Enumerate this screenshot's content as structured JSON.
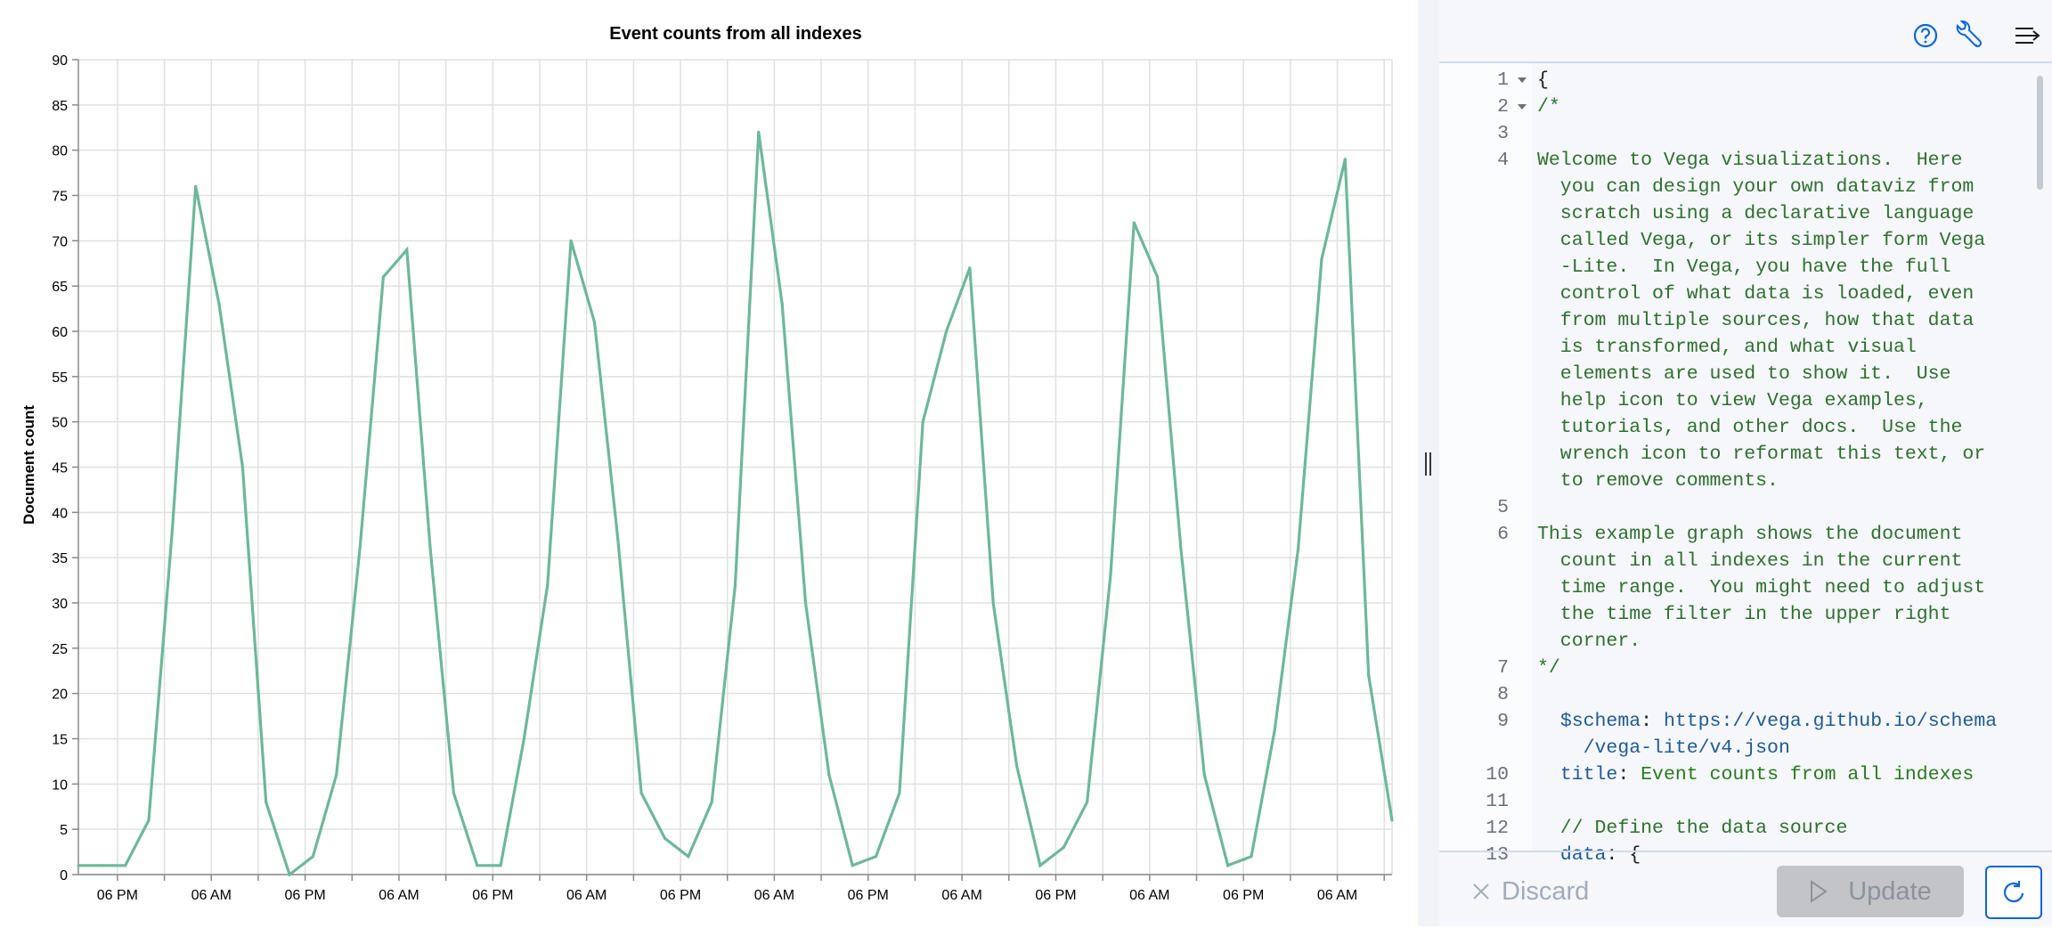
{
  "chart": {
    "title": "Event counts from all indexes",
    "y_axis_title": "Document count",
    "line_color": "#6db79b"
  },
  "chart_data": {
    "type": "line",
    "title": "Event counts from all indexes",
    "xlabel": "",
    "ylabel": "Document count",
    "ylim": [
      0,
      90
    ],
    "y_ticks": [
      "0",
      "5",
      "10",
      "15",
      "20",
      "25",
      "30",
      "35",
      "40",
      "45",
      "50",
      "55",
      "60",
      "65",
      "70",
      "75",
      "80",
      "85",
      "90"
    ],
    "x_tick_labels": [
      "06 PM",
      "06 AM",
      "06 PM",
      "06 AM",
      "06 PM",
      "06 AM",
      "06 PM",
      "06 AM",
      "06 PM",
      "06 AM",
      "06 PM",
      "06 AM",
      "06 PM",
      "06 AM"
    ],
    "grid": true,
    "x": [
      "1 PM",
      "4 PM",
      "7 PM",
      "10 PM",
      "1 AM",
      "4 AM",
      "7 AM",
      "10 AM",
      "1 PM",
      "4 PM",
      "7 PM",
      "10 PM",
      "1 AM",
      "4 AM",
      "7 AM",
      "10 AM",
      "1 PM",
      "4 PM",
      "7 PM",
      "10 PM",
      "1 AM",
      "4 AM",
      "7 AM",
      "10 AM",
      "1 PM",
      "4 PM",
      "7 PM",
      "10 PM",
      "1 AM",
      "4 AM",
      "7 AM",
      "10 AM",
      "1 PM",
      "4 PM",
      "7 PM",
      "10 PM",
      "1 AM",
      "4 AM",
      "7 AM",
      "10 AM",
      "1 PM",
      "4 PM",
      "7 PM",
      "10 PM",
      "1 AM",
      "4 AM",
      "7 AM",
      "10 AM",
      "1 PM",
      "4 PM",
      "7 PM",
      "10 PM",
      "1 AM",
      "4 AM",
      "7 AM",
      "10 AM",
      "1 PM"
    ],
    "values": [
      1,
      1,
      1,
      6,
      38,
      76,
      63,
      45,
      8,
      0,
      2,
      11,
      36,
      66,
      69,
      36,
      9,
      1,
      1,
      15,
      32,
      70,
      61,
      37,
      9,
      4,
      2,
      8,
      32,
      82,
      63,
      30,
      11,
      1,
      2,
      9,
      50,
      60,
      67,
      30,
      12,
      1,
      3,
      8,
      33,
      72,
      66,
      36,
      11,
      1,
      2,
      16,
      36,
      68,
      79,
      22,
      6
    ]
  },
  "toolbar": {
    "help_icon": "help-circle-icon",
    "wrench_icon": "wrench-icon",
    "menu_icon": "collapse-menu-icon",
    "accent": "#0b64dd"
  },
  "editor": {
    "lines": [
      {
        "num": "1",
        "fold": true,
        "rows": [
          [
            {
              "t": "{",
              "c": "plain"
            }
          ]
        ]
      },
      {
        "num": "2",
        "fold": true,
        "rows": [
          [
            {
              "t": "/*",
              "c": "comment"
            }
          ]
        ]
      },
      {
        "num": "3",
        "rows": [
          []
        ]
      },
      {
        "num": "4",
        "rows": [
          [
            {
              "t": "Welcome to Vega visualizations.  Here",
              "c": "comment"
            }
          ],
          [
            {
              "t": "  you can design your own dataviz from",
              "c": "comment"
            }
          ],
          [
            {
              "t": "  scratch using a declarative language",
              "c": "comment"
            }
          ],
          [
            {
              "t": "  called Vega, or its simpler form Vega",
              "c": "comment"
            }
          ],
          [
            {
              "t": "  -Lite.  In Vega, you have the full",
              "c": "comment"
            }
          ],
          [
            {
              "t": "  control of what data is loaded, even",
              "c": "comment"
            }
          ],
          [
            {
              "t": "  from multiple sources, how that data",
              "c": "comment"
            }
          ],
          [
            {
              "t": "  is transformed, and what visual",
              "c": "comment"
            }
          ],
          [
            {
              "t": "  elements are used to show it.  Use",
              "c": "comment"
            }
          ],
          [
            {
              "t": "  help icon to view Vega examples,",
              "c": "comment"
            }
          ],
          [
            {
              "t": "  tutorials, and other docs.  Use the",
              "c": "comment"
            }
          ],
          [
            {
              "t": "  wrench icon to reformat this text, or",
              "c": "comment"
            }
          ],
          [
            {
              "t": "  to remove comments.",
              "c": "comment"
            }
          ]
        ]
      },
      {
        "num": "5",
        "rows": [
          []
        ]
      },
      {
        "num": "6",
        "rows": [
          [
            {
              "t": "This example graph shows the document",
              "c": "comment"
            }
          ],
          [
            {
              "t": "  count in all indexes in the current",
              "c": "comment"
            }
          ],
          [
            {
              "t": "  time range.  You might need to adjust",
              "c": "comment"
            }
          ],
          [
            {
              "t": "  the time filter in the upper right",
              "c": "comment"
            }
          ],
          [
            {
              "t": "  corner.",
              "c": "comment"
            }
          ]
        ]
      },
      {
        "num": "7",
        "rows": [
          [
            {
              "t": "*/",
              "c": "comment"
            }
          ]
        ]
      },
      {
        "num": "8",
        "rows": [
          []
        ]
      },
      {
        "num": "9",
        "rows": [
          [
            {
              "t": "  ",
              "c": "plain"
            },
            {
              "t": "$schema",
              "c": "key"
            },
            {
              "t": ": ",
              "c": "plain"
            },
            {
              "t": "https",
              "c": "key"
            },
            {
              "t": "://vega.github.io/schema",
              "c": "key"
            }
          ],
          [
            {
              "t": "    /vega-lite/v4.json",
              "c": "key"
            }
          ]
        ]
      },
      {
        "num": "10",
        "rows": [
          [
            {
              "t": "  ",
              "c": "plain"
            },
            {
              "t": "title",
              "c": "key"
            },
            {
              "t": ": ",
              "c": "plain"
            },
            {
              "t": "Event counts from all indexes",
              "c": "string"
            }
          ]
        ]
      },
      {
        "num": "11",
        "rows": [
          []
        ]
      },
      {
        "num": "12",
        "rows": [
          [
            {
              "t": "  // Define the data source",
              "c": "comment"
            }
          ]
        ]
      },
      {
        "num": "13",
        "rows": [
          [
            {
              "t": "  ",
              "c": "plain"
            },
            {
              "t": "data",
              "c": "key"
            },
            {
              "t": ": {",
              "c": "plain"
            }
          ]
        ]
      }
    ]
  },
  "footer": {
    "discard_label": "Discard",
    "update_label": "Update",
    "refresh_icon": "refresh-icon"
  }
}
